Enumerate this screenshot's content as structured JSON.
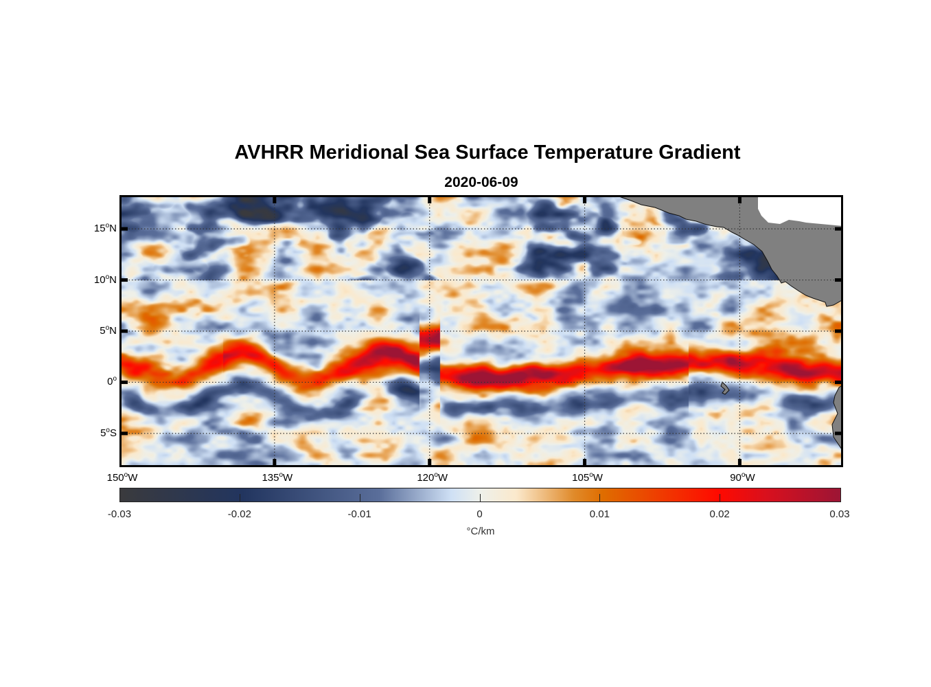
{
  "title": "AVHRR Meridional Sea Surface Temperature Gradient",
  "subtitle": "2020-06-09",
  "map": {
    "lon_range": [
      -150,
      -80
    ],
    "lat_range": [
      -8.3,
      18.3
    ],
    "lat_ticks": [
      {
        "value": 15,
        "num": "15",
        "deg": "o",
        "hem": "N"
      },
      {
        "value": 10,
        "num": "10",
        "deg": "o",
        "hem": "N"
      },
      {
        "value": 5,
        "num": "5",
        "deg": "o",
        "hem": "N"
      },
      {
        "value": 0,
        "num": "0",
        "deg": "o",
        "hem": ""
      },
      {
        "value": -5,
        "num": "5",
        "deg": "o",
        "hem": "S"
      }
    ],
    "lon_ticks": [
      {
        "value": -150,
        "num": "150",
        "deg": "o",
        "hem": "W"
      },
      {
        "value": -135,
        "num": "135",
        "deg": "o",
        "hem": "W"
      },
      {
        "value": -120,
        "num": "120",
        "deg": "o",
        "hem": "W"
      },
      {
        "value": -105,
        "num": "105",
        "deg": "o",
        "hem": "W"
      },
      {
        "value": -90,
        "num": "90",
        "deg": "o",
        "hem": "W"
      }
    ],
    "land_color": "#808080",
    "grid": "dotted"
  },
  "colorbar": {
    "range": [
      -0.03,
      0.03
    ],
    "ticks": [
      {
        "value": -0.03,
        "label": "-0.03"
      },
      {
        "value": -0.02,
        "label": "-0.02"
      },
      {
        "value": -0.01,
        "label": "-0.01"
      },
      {
        "value": 0,
        "label": "0"
      },
      {
        "value": 0.01,
        "label": "0.01"
      },
      {
        "value": 0.02,
        "label": "0.02"
      },
      {
        "value": 0.03,
        "label": "0.03"
      }
    ],
    "unit": "°C/km",
    "stops": [
      "#3a3a3d",
      "#22355f",
      "#5a6e9a",
      "#cfe0f5",
      "#eef0ea",
      "#fbe9cc",
      "#e08a2a",
      "#df6d00",
      "#ff0a00",
      "#d7101e",
      "#9c1535"
    ]
  }
}
